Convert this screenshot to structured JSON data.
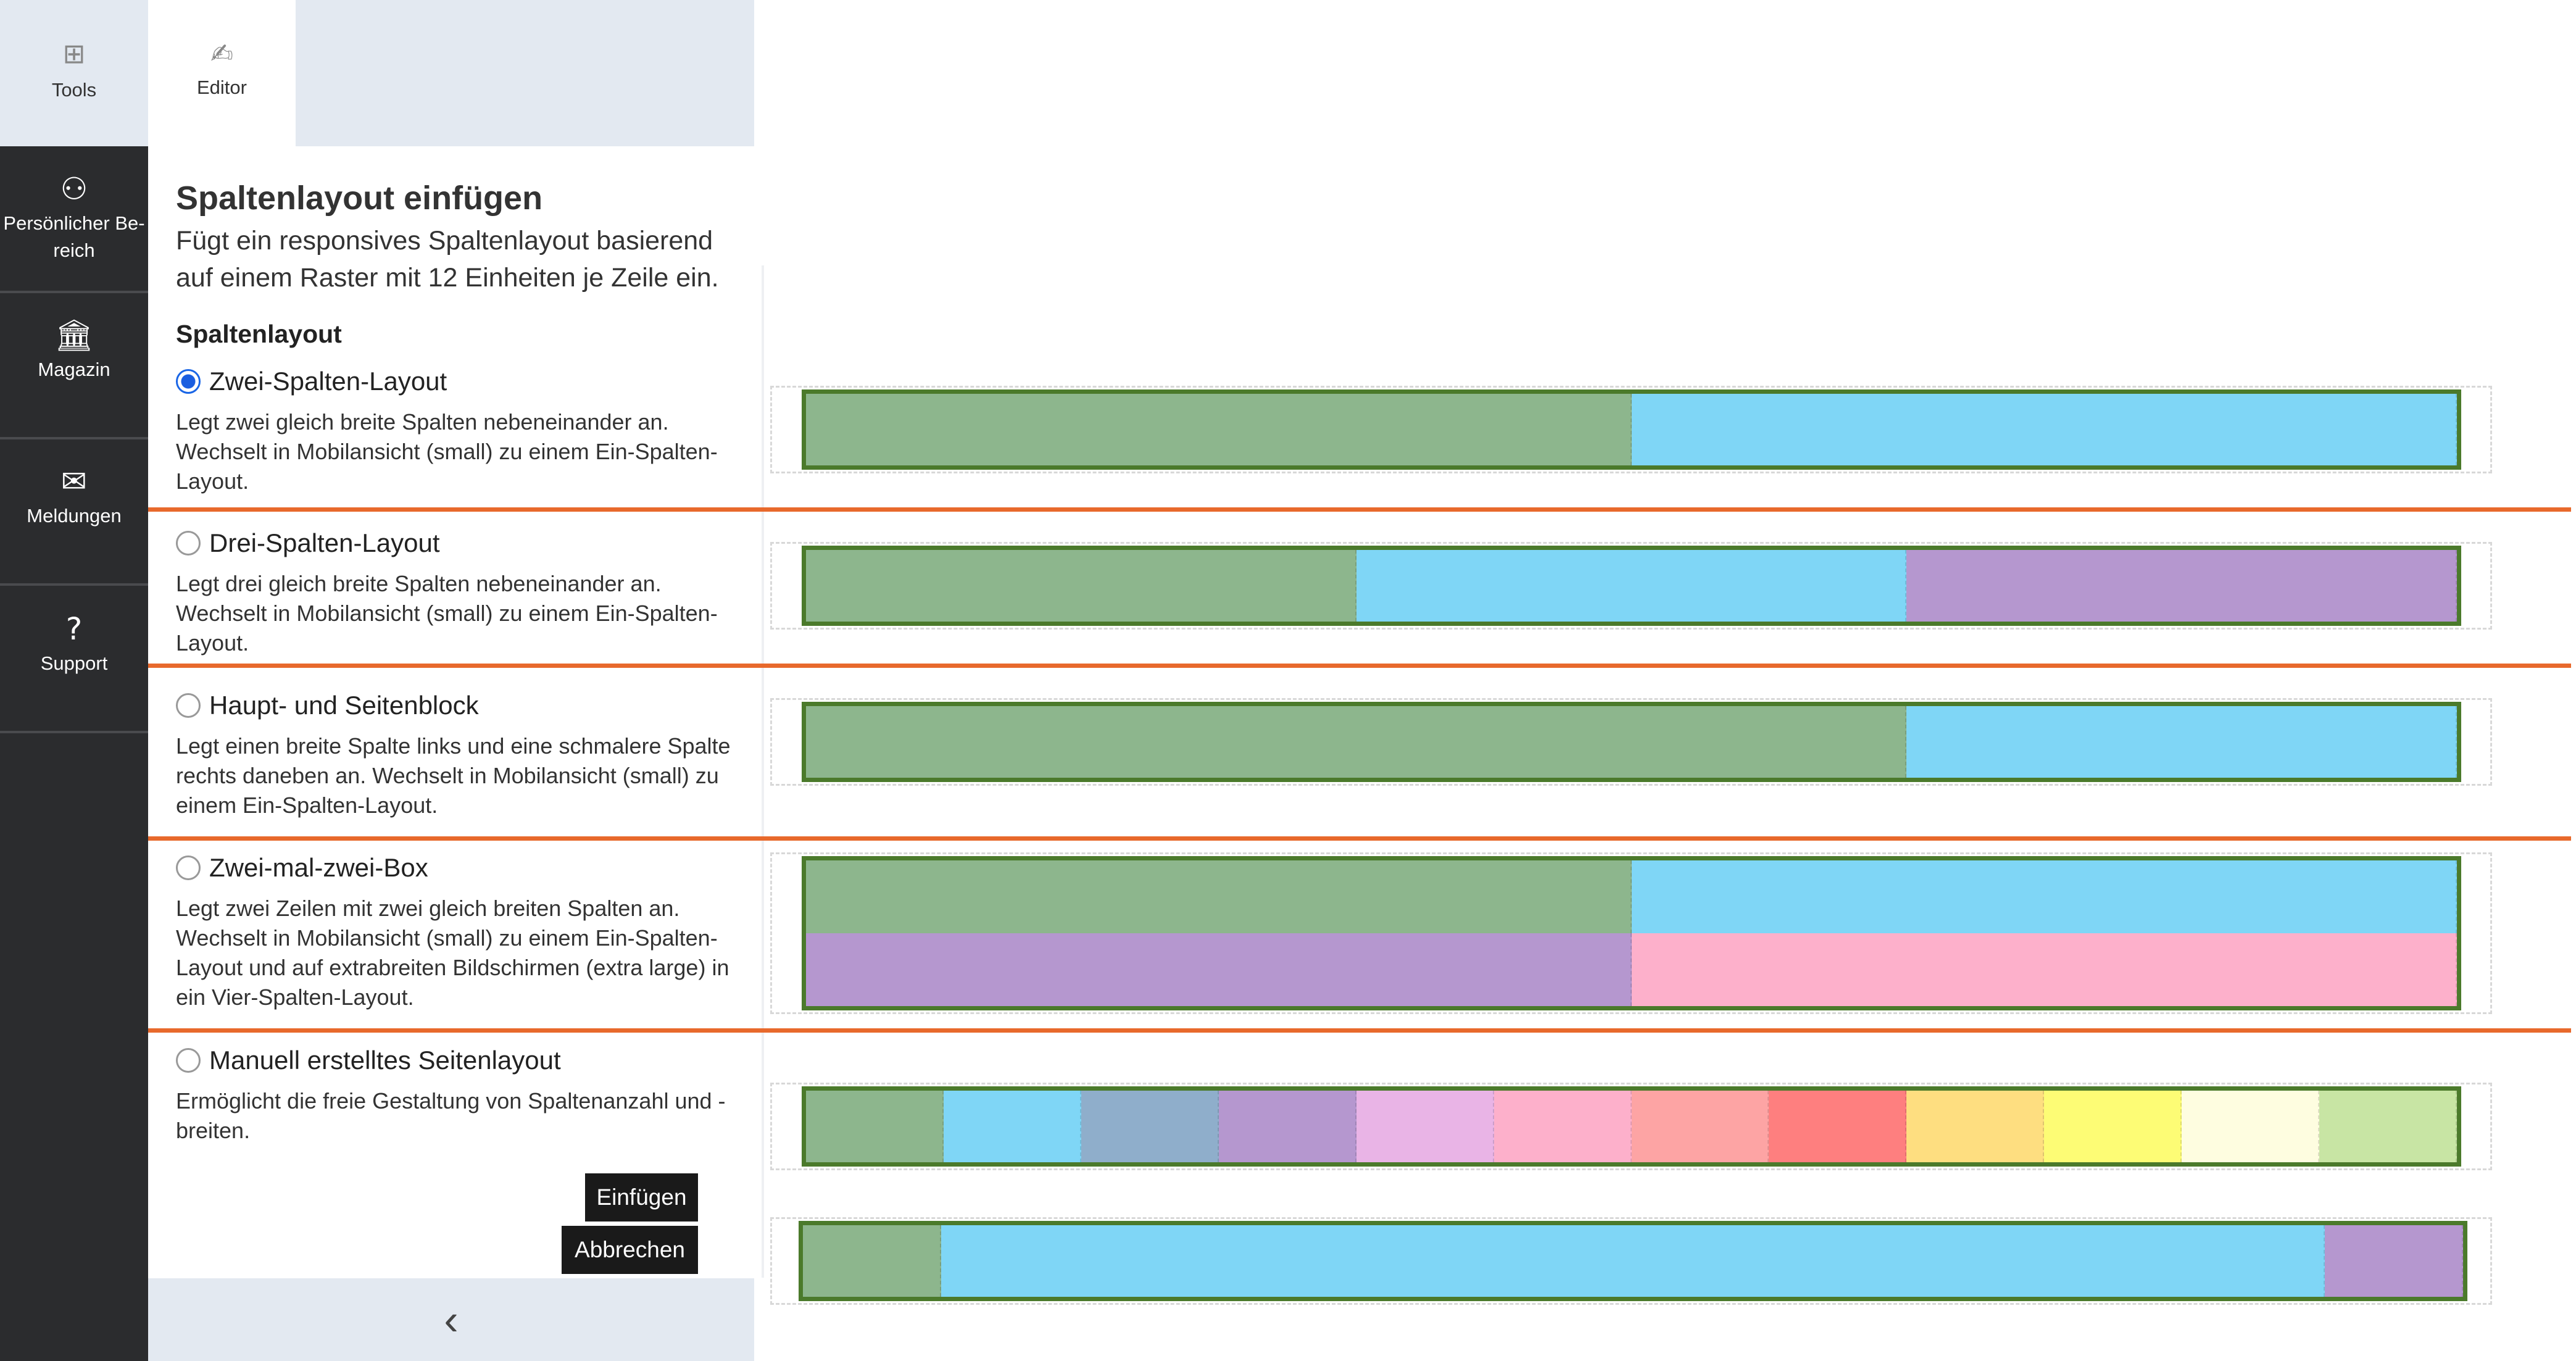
{
  "sidebar": {
    "items": [
      {
        "label": "Tools",
        "icon": "grid-icon"
      },
      {
        "label": "Persönlicher Be-reich",
        "icon": "user-icon"
      },
      {
        "label": "Magazin",
        "icon": "bank-icon"
      },
      {
        "label": "Meldungen",
        "icon": "envelope-icon"
      },
      {
        "label": "Support",
        "icon": "question-icon"
      }
    ]
  },
  "tabs": {
    "editor": "Editor"
  },
  "dialog": {
    "title": "Spaltenlayout einfügen",
    "description": "Fügt ein responsives Spaltenlayout basierend auf einem Raster mit 12 Einheiten je Zeile ein.",
    "section_label": "Spaltenlayout",
    "options": [
      {
        "label": "Zwei-Spalten-Layout",
        "selected": true,
        "text": "Legt zwei gleich breite Spalten nebeneinander an. Wechselt in Mobilansicht (small) zu einem Ein-Spalten-Layout."
      },
      {
        "label": "Drei-Spalten-Layout",
        "selected": false,
        "text": "Legt drei gleich breite Spalten nebeneinander an. Wechselt in Mobilansicht (small) zu einem Ein-Spalten-Layout."
      },
      {
        "label": "Haupt- und Seitenblock",
        "selected": false,
        "text": "Legt einen breite Spalte links und eine schmalere Spalte rechts daneben an. Wechselt in Mobilansicht (small) zu einem Ein-Spalten-Layout."
      },
      {
        "label": "Zwei-mal-zwei-Box",
        "selected": false,
        "text": "Legt zwei Zeilen mit zwei gleich breiten Spalten an. Wechselt in Mobilansicht (small) zu einem Ein-Spalten-Layout und auf extrabreiten Bildschirmen (extra large) in ein Vier-Spalten-Layout."
      },
      {
        "label": "Manuell erstelltes Seitenlayout",
        "selected": false,
        "text": "Ermöglicht die freie Gestaltung von Spaltenanzahl und -breiten."
      }
    ],
    "insert_label": "Einfügen",
    "cancel_label": "Abbrechen"
  },
  "previews": {
    "grid_units": 12,
    "border_color": "#4b7a2b",
    "accent_separator": "#e8692c",
    "layouts": [
      {
        "rows": [
          [
            {
              "span": 6,
              "color": "#8db68d"
            },
            {
              "span": 6,
              "color": "#7fd6f6"
            }
          ]
        ]
      },
      {
        "rows": [
          [
            {
              "span": 4,
              "color": "#8db68d"
            },
            {
              "span": 4,
              "color": "#7fd6f6"
            },
            {
              "span": 4,
              "color": "#b597cf"
            }
          ]
        ]
      },
      {
        "rows": [
          [
            {
              "span": 8,
              "color": "#8db68d"
            },
            {
              "span": 4,
              "color": "#7fd6f6"
            }
          ]
        ]
      },
      {
        "rows": [
          [
            {
              "span": 6,
              "color": "#8db68d"
            },
            {
              "span": 6,
              "color": "#7fd6f6"
            }
          ],
          [
            {
              "span": 6,
              "color": "#b597cf"
            },
            {
              "span": 6,
              "color": "#fdb0cb"
            }
          ]
        ]
      },
      {
        "rows": [
          [
            {
              "span": 1,
              "color": "#8db68d"
            },
            {
              "span": 1,
              "color": "#7fd6f6"
            },
            {
              "span": 1,
              "color": "#8faecb"
            },
            {
              "span": 1,
              "color": "#b597cf"
            },
            {
              "span": 1,
              "color": "#e9b4e6"
            },
            {
              "span": 1,
              "color": "#fdb0cb"
            },
            {
              "span": 1,
              "color": "#fda4a4"
            },
            {
              "span": 1,
              "color": "#fe7f7f"
            },
            {
              "span": 1,
              "color": "#fede80"
            },
            {
              "span": 1,
              "color": "#fdfc75"
            },
            {
              "span": 1,
              "color": "#fefde0"
            },
            {
              "span": 1,
              "color": "#c8e5a4"
            }
          ]
        ]
      },
      {
        "rows": [
          [
            {
              "span": 1,
              "color": "#8db68d"
            },
            {
              "span": 10,
              "color": "#7fd6f6"
            },
            {
              "span": 1,
              "color": "#b597cf"
            }
          ]
        ]
      }
    ]
  }
}
